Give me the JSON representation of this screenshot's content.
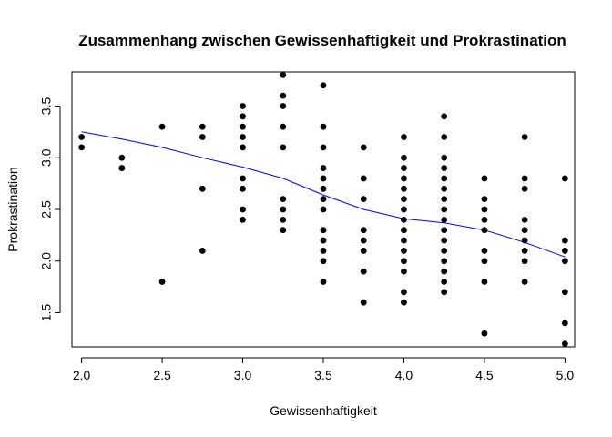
{
  "chart_data": {
    "type": "scatter",
    "title": "Zusammenhang zwischen Gewissenhaftigkeit und Prokrastination",
    "xlabel": "Gewissenhaftigkeit",
    "ylabel": "Prokrastination",
    "xlim": [
      1.94,
      5.06
    ],
    "ylim": [
      1.17,
      3.83
    ],
    "xticks": [
      2.0,
      2.5,
      3.0,
      3.5,
      4.0,
      4.5,
      5.0
    ],
    "xtick_labels": [
      "2.0",
      "2.5",
      "3.0",
      "3.5",
      "4.0",
      "4.5",
      "5.0"
    ],
    "yticks": [
      1.5,
      2.0,
      2.5,
      3.0,
      3.5
    ],
    "ytick_labels": [
      "1.5",
      "2.0",
      "2.5",
      "3.0",
      "3.5"
    ],
    "grid": false,
    "point_color": "#000000",
    "line_color": "#0000ff",
    "points": [
      [
        2.0,
        3.2
      ],
      [
        2.0,
        3.1
      ],
      [
        2.25,
        3.0
      ],
      [
        2.25,
        2.9
      ],
      [
        2.5,
        3.3
      ],
      [
        2.5,
        1.8
      ],
      [
        2.75,
        3.3
      ],
      [
        2.75,
        3.2
      ],
      [
        2.75,
        2.7
      ],
      [
        2.75,
        2.1
      ],
      [
        3.0,
        3.5
      ],
      [
        3.0,
        3.4
      ],
      [
        3.0,
        3.3
      ],
      [
        3.0,
        3.2
      ],
      [
        3.0,
        3.1
      ],
      [
        3.0,
        2.8
      ],
      [
        3.0,
        2.7
      ],
      [
        3.0,
        2.5
      ],
      [
        3.0,
        2.4
      ],
      [
        3.25,
        3.8
      ],
      [
        3.25,
        3.6
      ],
      [
        3.25,
        3.5
      ],
      [
        3.25,
        3.3
      ],
      [
        3.25,
        3.1
      ],
      [
        3.25,
        2.6
      ],
      [
        3.25,
        2.5
      ],
      [
        3.25,
        2.4
      ],
      [
        3.25,
        2.3
      ],
      [
        3.5,
        3.7
      ],
      [
        3.5,
        3.3
      ],
      [
        3.5,
        3.1
      ],
      [
        3.5,
        2.9
      ],
      [
        3.5,
        2.8
      ],
      [
        3.5,
        2.7
      ],
      [
        3.5,
        2.6
      ],
      [
        3.5,
        2.5
      ],
      [
        3.5,
        2.3
      ],
      [
        3.5,
        2.2
      ],
      [
        3.5,
        2.1
      ],
      [
        3.5,
        2.0
      ],
      [
        3.5,
        1.8
      ],
      [
        3.75,
        3.1
      ],
      [
        3.75,
        2.8
      ],
      [
        3.75,
        2.6
      ],
      [
        3.75,
        2.3
      ],
      [
        3.75,
        2.2
      ],
      [
        3.75,
        2.1
      ],
      [
        3.75,
        1.9
      ],
      [
        3.75,
        1.6
      ],
      [
        4.0,
        3.2
      ],
      [
        4.0,
        3.0
      ],
      [
        4.0,
        2.9
      ],
      [
        4.0,
        2.8
      ],
      [
        4.0,
        2.7
      ],
      [
        4.0,
        2.6
      ],
      [
        4.0,
        2.5
      ],
      [
        4.0,
        2.4
      ],
      [
        4.0,
        2.3
      ],
      [
        4.0,
        2.2
      ],
      [
        4.0,
        2.1
      ],
      [
        4.0,
        2.0
      ],
      [
        4.0,
        1.9
      ],
      [
        4.0,
        1.7
      ],
      [
        4.0,
        1.6
      ],
      [
        4.25,
        3.4
      ],
      [
        4.25,
        3.2
      ],
      [
        4.25,
        3.0
      ],
      [
        4.25,
        2.9
      ],
      [
        4.25,
        2.8
      ],
      [
        4.25,
        2.7
      ],
      [
        4.25,
        2.6
      ],
      [
        4.25,
        2.5
      ],
      [
        4.25,
        2.4
      ],
      [
        4.25,
        2.3
      ],
      [
        4.25,
        2.2
      ],
      [
        4.25,
        2.1
      ],
      [
        4.25,
        2.0
      ],
      [
        4.25,
        1.9
      ],
      [
        4.25,
        1.8
      ],
      [
        4.25,
        1.7
      ],
      [
        4.5,
        2.8
      ],
      [
        4.5,
        2.6
      ],
      [
        4.5,
        2.5
      ],
      [
        4.5,
        2.4
      ],
      [
        4.5,
        2.3
      ],
      [
        4.5,
        2.1
      ],
      [
        4.5,
        2.0
      ],
      [
        4.5,
        1.8
      ],
      [
        4.5,
        1.3
      ],
      [
        4.75,
        3.2
      ],
      [
        4.75,
        2.8
      ],
      [
        4.75,
        2.7
      ],
      [
        4.75,
        2.4
      ],
      [
        4.75,
        2.3
      ],
      [
        4.75,
        2.2
      ],
      [
        4.75,
        2.1
      ],
      [
        4.75,
        2.0
      ],
      [
        4.75,
        1.8
      ],
      [
        5.0,
        2.8
      ],
      [
        5.0,
        2.2
      ],
      [
        5.0,
        2.1
      ],
      [
        5.0,
        2.0
      ],
      [
        5.0,
        1.7
      ],
      [
        5.0,
        1.4
      ],
      [
        5.0,
        1.2
      ]
    ],
    "lowess": [
      [
        2.0,
        3.25
      ],
      [
        2.25,
        3.18
      ],
      [
        2.5,
        3.1
      ],
      [
        2.75,
        3.0
      ],
      [
        3.0,
        2.91
      ],
      [
        3.25,
        2.8
      ],
      [
        3.5,
        2.64
      ],
      [
        3.75,
        2.5
      ],
      [
        4.0,
        2.41
      ],
      [
        4.25,
        2.37
      ],
      [
        4.5,
        2.3
      ],
      [
        4.75,
        2.18
      ],
      [
        5.0,
        2.04
      ]
    ]
  }
}
